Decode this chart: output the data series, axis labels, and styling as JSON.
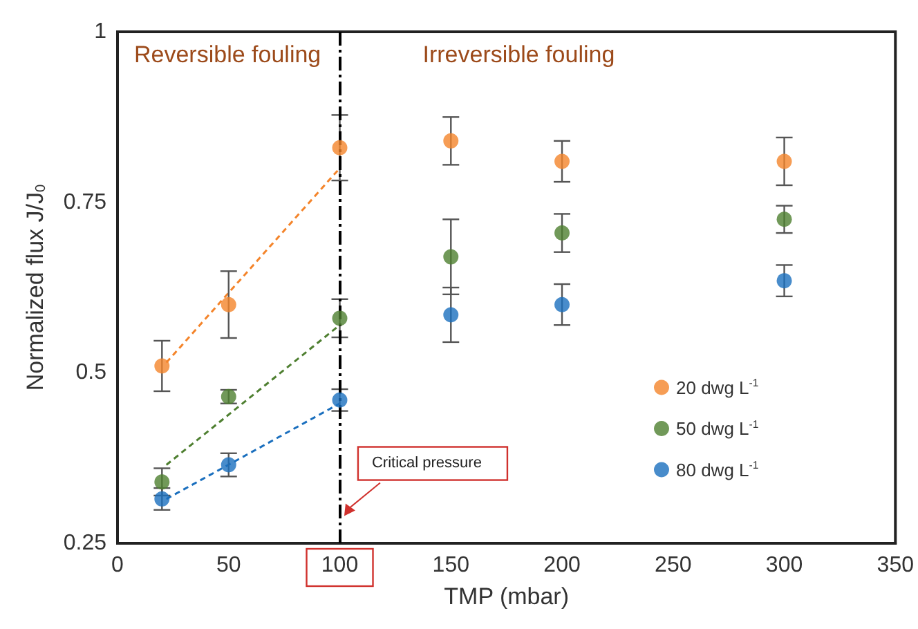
{
  "chart_data": {
    "type": "scatter",
    "xlabel": "TMP (mbar)",
    "ylabel": "Normalized flux J/J$_{0}$",
    "xlim": [
      0,
      350
    ],
    "xticks": [
      0,
      50,
      100,
      150,
      200,
      250,
      300,
      350
    ],
    "ylim": [
      0.25,
      1
    ],
    "yticks": [
      0.25,
      0.5,
      0.75,
      1
    ],
    "grid": false,
    "legend": "right",
    "marker": "circle",
    "series": [
      {
        "name": "20 dwg L$^{-1}$",
        "color": "#f4842a",
        "x": [
          20,
          50,
          100,
          150,
          200,
          300
        ],
        "values": [
          0.51,
          0.6,
          0.83,
          0.84,
          0.81,
          0.81
        ],
        "errors": [
          0.037,
          0.049,
          0.048,
          0.035,
          0.03,
          0.035
        ]
      },
      {
        "name": "50 dwg L$^{-1}$",
        "color": "#4e7f30",
        "x": [
          20,
          50,
          100,
          150,
          200,
          300
        ],
        "values": [
          0.34,
          0.465,
          0.58,
          0.67,
          0.705,
          0.725
        ],
        "errors": [
          0.02,
          0.01,
          0.028,
          0.055,
          0.028,
          0.02
        ]
      },
      {
        "name": "80 dwg L$^{-1}$",
        "color": "#1a6fbe",
        "x": [
          20,
          50,
          100,
          150,
          200,
          300
        ],
        "values": [
          0.315,
          0.365,
          0.46,
          0.585,
          0.6,
          0.635
        ],
        "errors": [
          0.016,
          0.017,
          0.016,
          0.04,
          0.03,
          0.023
        ]
      },
      {
        "type": "line",
        "color": "#f4842a",
        "x": [
          22,
          100
        ],
        "values": [
          0.515,
          0.8
        ],
        "line_style": "dashed",
        "marker": "none"
      },
      {
        "type": "line",
        "color": "#4e7f30",
        "x": [
          22,
          100
        ],
        "values": [
          0.365,
          0.57
        ],
        "line_style": "dashed",
        "marker": "none"
      },
      {
        "type": "line",
        "color": "#1a6fbe",
        "x": [
          22,
          100
        ],
        "values": [
          0.315,
          0.455
        ],
        "line_style": "dashed",
        "marker": "none"
      }
    ],
    "ref_lines": [
      {
        "axis": "x",
        "value": 100,
        "color": "#000000",
        "line_style": "dashed"
      }
    ],
    "annotations": [
      "Reversible fouling",
      "Irreversible fouling",
      {
        "text": "Critical pressure",
        "x": 102,
        "y": 0.29
      }
    ]
  }
}
